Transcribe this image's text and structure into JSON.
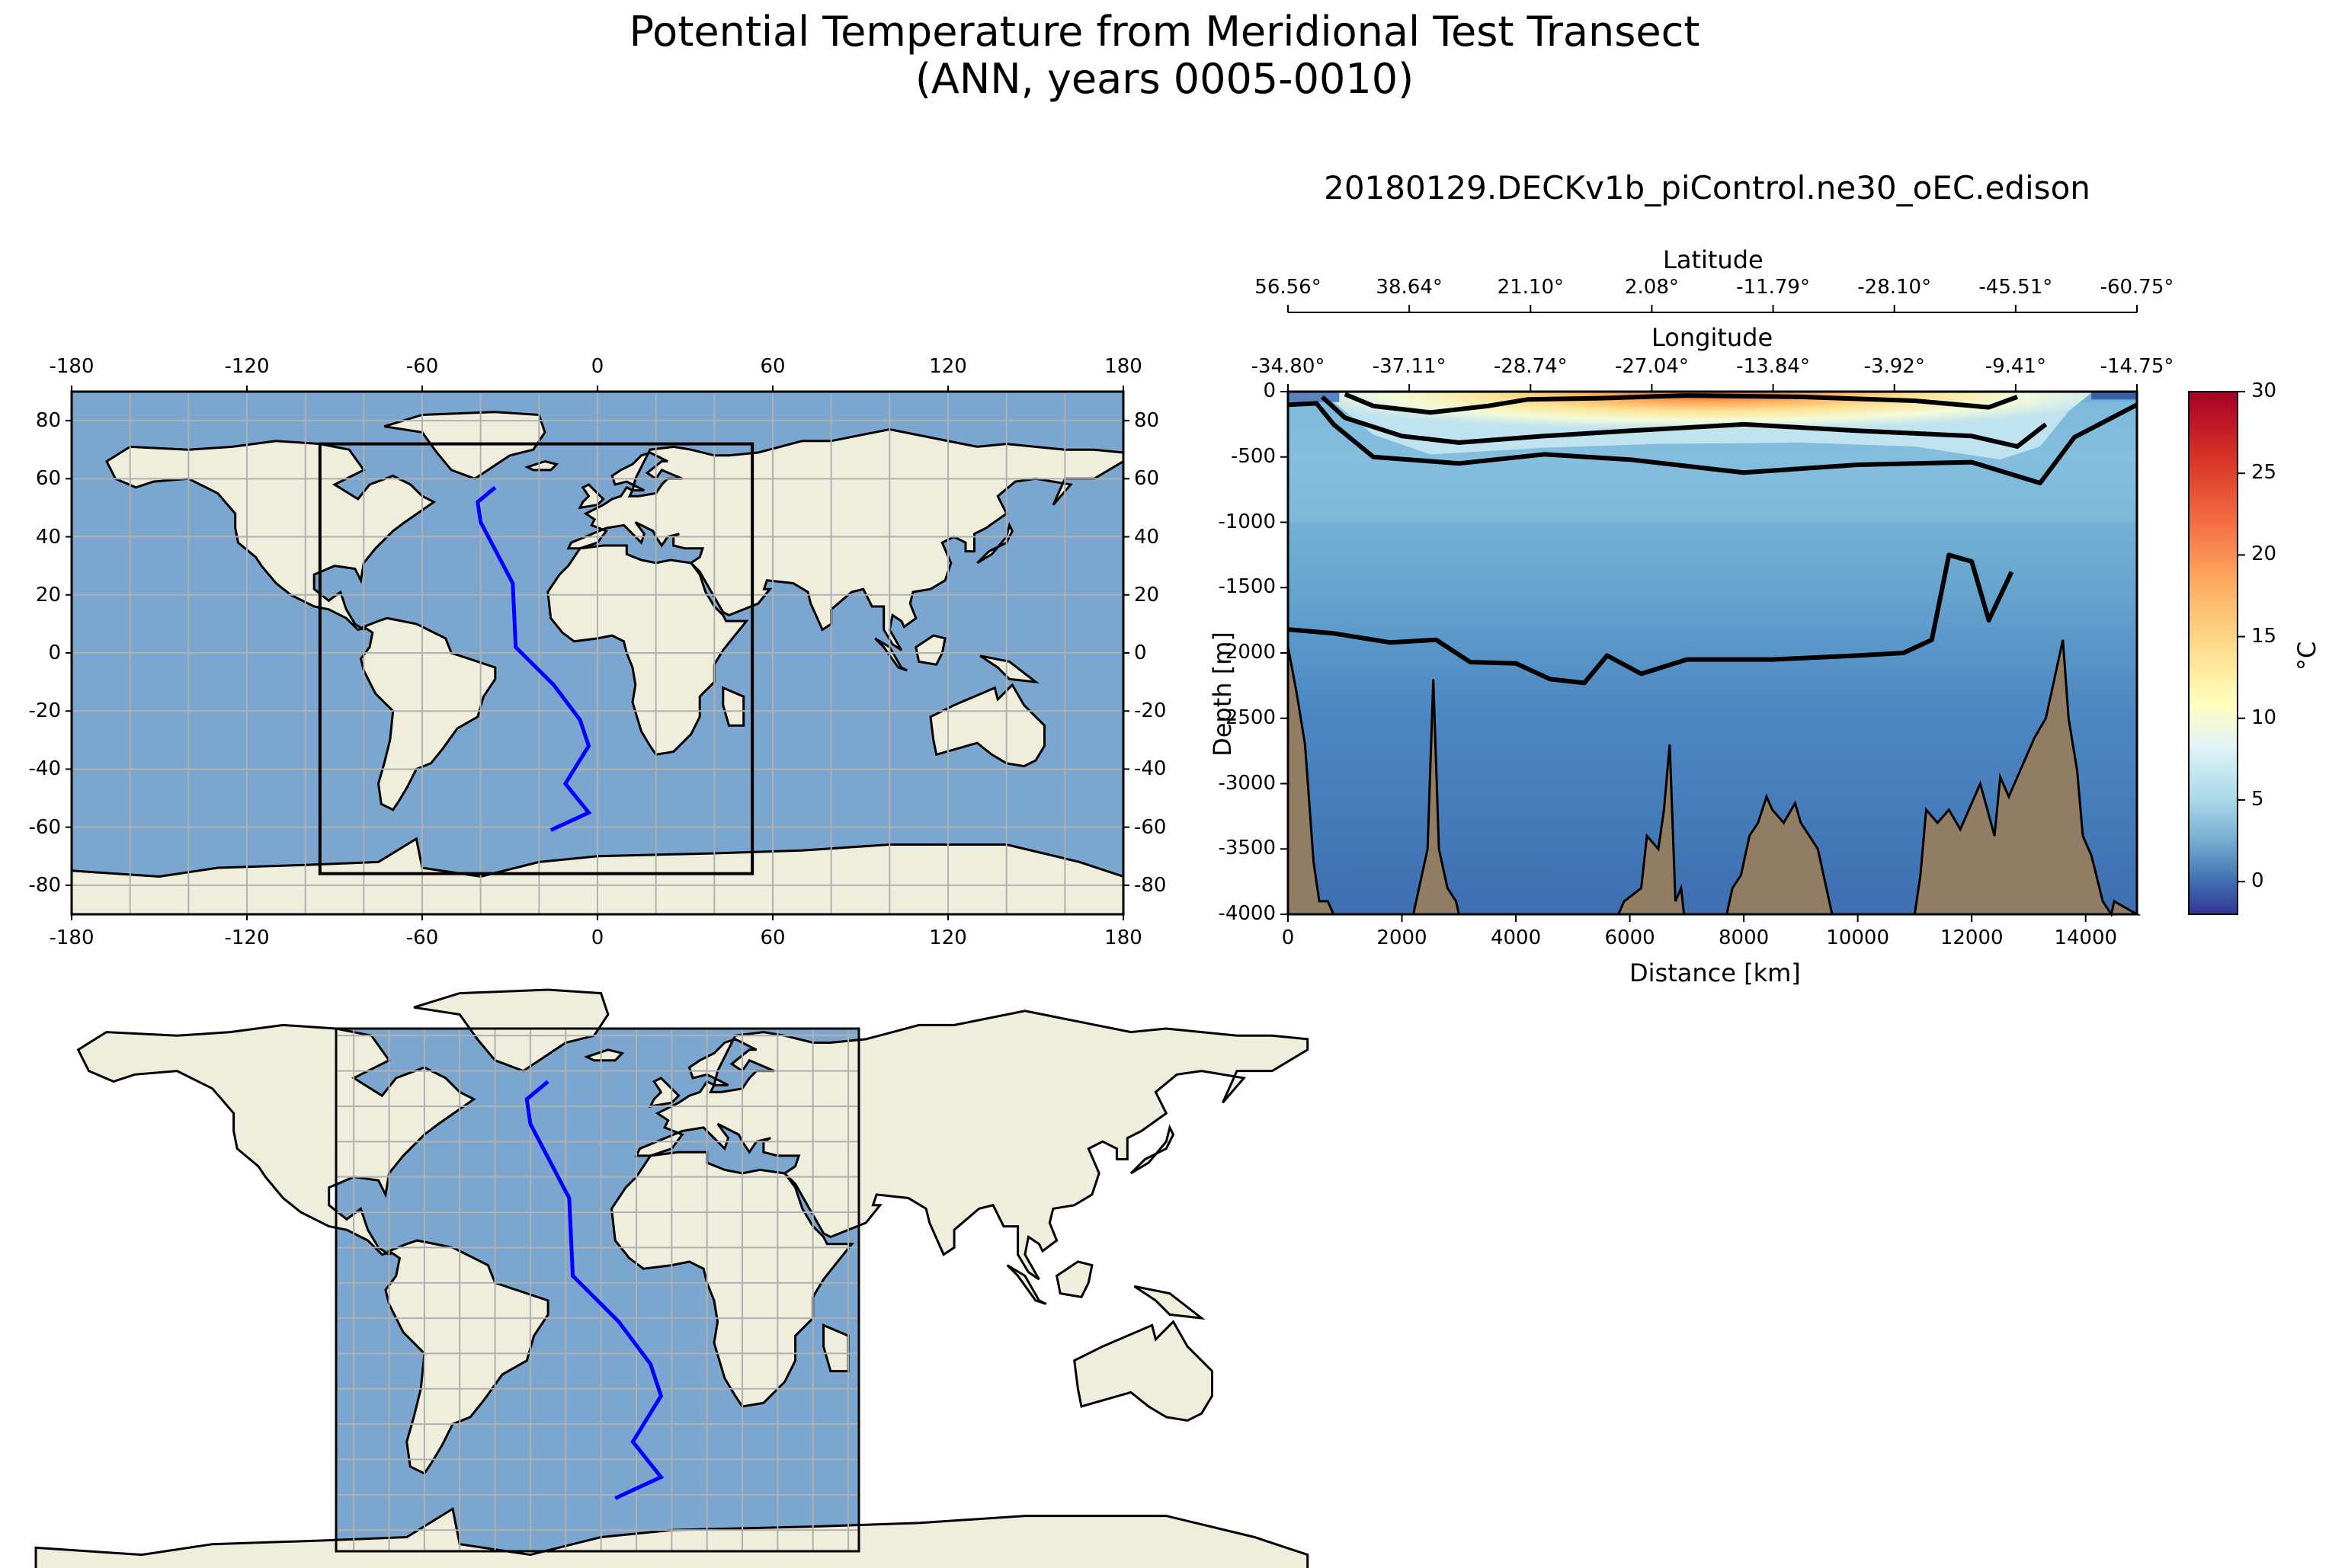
{
  "figure": {
    "title_line1": "Potential Temperature from Meridional Test Transect",
    "title_line2": "(ANN, years 0005-0010)",
    "run_name": "20180129.DECKv1b_piControl.ne30_oEC.edison"
  },
  "colors": {
    "ocean": "#7aa6cf",
    "land": "#efeedc",
    "transect": "#0000ff",
    "seafloor": "#917d64",
    "frame": "#000000"
  },
  "chart_data": [
    {
      "type": "map",
      "name": "global-map",
      "projection": "plate-carree",
      "xlim": [
        -180,
        180
      ],
      "ylim": [
        -90,
        90
      ],
      "x_ticks": [
        "-180",
        "-120",
        "-60",
        "0",
        "60",
        "120",
        "180"
      ],
      "y_ticks": [
        "80",
        "60",
        "40",
        "20",
        "0",
        "-20",
        "-40",
        "-60",
        "-80"
      ],
      "grid": true,
      "box_lon": [
        -95,
        53
      ],
      "box_lat": [
        -76,
        72
      ],
      "transect": {
        "lon": [
          -35,
          -41,
          -40,
          -29,
          -28,
          -15,
          -6,
          -3,
          -11,
          -3,
          -16
        ],
        "lat": [
          57,
          52,
          45,
          24,
          2,
          -11,
          -23,
          -32,
          -45,
          -55,
          -61
        ]
      }
    },
    {
      "type": "map",
      "name": "zoom-map",
      "projection": "plate-carree",
      "xlim": [
        -95,
        53
      ],
      "ylim": [
        -76,
        72
      ],
      "grid": true,
      "transect": {
        "lon": [
          -35,
          -41,
          -40,
          -29,
          -28,
          -15,
          -6,
          -3,
          -11,
          -3,
          -16
        ],
        "lat": [
          57,
          52,
          45,
          24,
          2,
          -11,
          -23,
          -32,
          -45,
          -55,
          -61
        ]
      }
    },
    {
      "type": "heatmap",
      "name": "transect-section",
      "xlabel": "Distance [km]",
      "ylabel": "Depth [m]",
      "xlim": [
        0,
        14900
      ],
      "ylim": [
        -4000,
        0
      ],
      "x_ticks": [
        "0",
        "2000",
        "4000",
        "6000",
        "8000",
        "10000",
        "12000",
        "14000"
      ],
      "y_ticks": [
        "0",
        "-500",
        "-1000",
        "-1500",
        "-2000",
        "-2500",
        "-3000",
        "-3500",
        "-4000"
      ],
      "top_axis_latitude": {
        "label": "Latitude",
        "ticks": [
          "56.56°",
          "38.64°",
          "21.10°",
          "2.08°",
          "-11.79°",
          "-28.10°",
          "-45.51°",
          "-60.75°"
        ]
      },
      "top_axis_longitude": {
        "label": "Longitude",
        "ticks": [
          "-34.80°",
          "-37.11°",
          "-28.74°",
          "-27.04°",
          "-13.84°",
          "-3.92°",
          "-9.41°",
          "-14.75°"
        ]
      },
      "colorbar": {
        "label": "°C",
        "range": [
          -2,
          30
        ],
        "ticks": [
          "30",
          "25",
          "20",
          "15",
          "10",
          "5",
          "0"
        ],
        "colormap": "RdYlBu_r"
      },
      "contours": [
        {
          "distance": [
            0,
            500,
            800,
            1500,
            3000,
            4500,
            6000,
            8000,
            10000,
            12000,
            13200,
            13800,
            14900
          ],
          "depth": [
            -100,
            -90,
            -250,
            -500,
            -550,
            -480,
            -520,
            -620,
            -560,
            -540,
            -700,
            -350,
            -100
          ]
        },
        {
          "distance": [
            600,
            1000,
            2000,
            3000,
            4500,
            6000,
            8000,
            10000,
            12000,
            12800,
            13300
          ],
          "depth": [
            -40,
            -200,
            -340,
            -390,
            -340,
            -300,
            -250,
            -300,
            -340,
            -420,
            -250
          ]
        },
        {
          "distance": [
            1000,
            1500,
            2500,
            3500,
            4200,
            5500,
            7000,
            9000,
            11000,
            12300,
            12800
          ],
          "depth": [
            -20,
            -110,
            -160,
            -110,
            -60,
            -50,
            -30,
            -40,
            -70,
            -120,
            -40
          ]
        },
        {
          "distance": [
            0,
            800,
            1800,
            2600,
            3200,
            4000,
            4600,
            5200,
            5600,
            6200,
            7000,
            8500,
            10000,
            10800,
            11300,
            11600,
            12000,
            12300,
            12700
          ],
          "depth": [
            -1820,
            -1850,
            -1920,
            -1900,
            -2070,
            -2080,
            -2200,
            -2230,
            -2020,
            -2160,
            -2050,
            -2050,
            -2020,
            -2000,
            -1900,
            -1250,
            -1300,
            -1750,
            -1380
          ]
        }
      ],
      "seafloor": {
        "distance": [
          0,
          150,
          300,
          450,
          550,
          700,
          800,
          2200,
          2350,
          2450,
          2550,
          2650,
          2800,
          2950,
          3000,
          5800,
          5900,
          6200,
          6300,
          6500,
          6600,
          6700,
          6800,
          6900,
          6950,
          7700,
          7800,
          7950,
          8100,
          8250,
          8400,
          8500,
          8700,
          8900,
          9000,
          9300,
          9450,
          9550,
          11000,
          11100,
          11200,
          11400,
          11600,
          11800,
          12000,
          12150,
          12400,
          12500,
          12650,
          12900,
          13100,
          13300,
          13400,
          13500,
          13600,
          13700,
          13850,
          13950,
          14100,
          14300,
          14450,
          14500,
          14900
        ],
        "depth": [
          -1950,
          -2300,
          -2700,
          -3600,
          -3900,
          -3900,
          -4000,
          -4000,
          -3700,
          -3500,
          -2200,
          -3500,
          -3800,
          -3900,
          -4000,
          -4000,
          -3900,
          -3800,
          -3400,
          -3500,
          -3200,
          -2700,
          -3900,
          -3800,
          -4000,
          -4000,
          -3800,
          -3700,
          -3400,
          -3300,
          -3100,
          -3200,
          -3300,
          -3150,
          -3300,
          -3500,
          -3800,
          -4000,
          -4000,
          -3700,
          -3200,
          -3300,
          -3200,
          -3350,
          -3150,
          -3000,
          -3400,
          -2950,
          -3100,
          -2850,
          -2650,
          -2500,
          -2300,
          -2100,
          -1900,
          -2500,
          -2900,
          -3400,
          -3550,
          -3900,
          -4000,
          -3900,
          -4000
        ]
      }
    }
  ]
}
